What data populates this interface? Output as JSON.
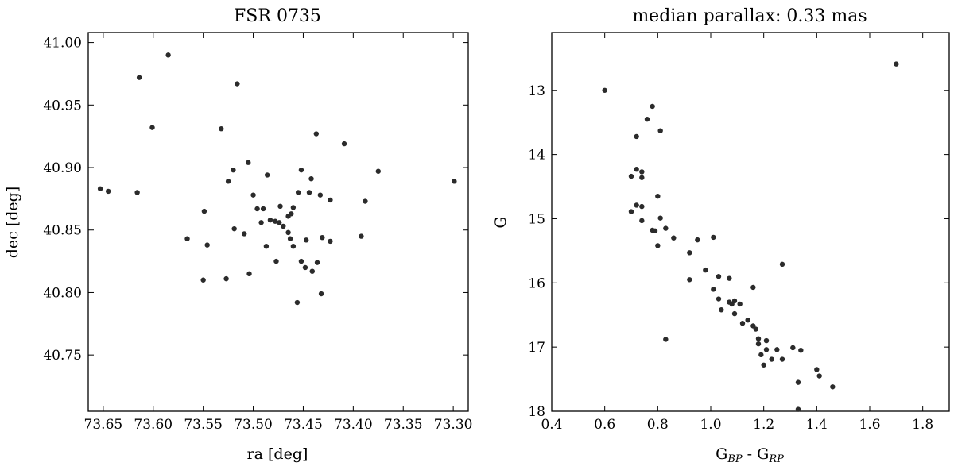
{
  "chart_data": [
    {
      "type": "scatter",
      "title": "FSR 0735",
      "xlabel": "ra [deg]",
      "ylabel": "dec [deg]",
      "xlim": [
        73.665,
        73.285
      ],
      "ylim": [
        40.705,
        41.008
      ],
      "xticks": [
        73.65,
        73.6,
        73.55,
        73.5,
        73.45,
        73.4,
        73.35,
        73.3
      ],
      "xtick_labels": [
        "73.65",
        "73.60",
        "73.55",
        "73.50",
        "73.45",
        "73.40",
        "73.35",
        "73.30"
      ],
      "yticks": [
        40.75,
        40.8,
        40.85,
        40.9,
        40.95,
        41.0
      ],
      "ytick_labels": [
        "40.75",
        "40.80",
        "40.85",
        "40.90",
        "40.95",
        "41.00"
      ],
      "grid": false,
      "color": "#2b2b2b",
      "points": [
        [
          73.653,
          40.883
        ],
        [
          73.645,
          40.881
        ],
        [
          73.616,
          40.88
        ],
        [
          73.614,
          40.972
        ],
        [
          73.585,
          40.99
        ],
        [
          73.601,
          40.932
        ],
        [
          73.566,
          40.843
        ],
        [
          73.549,
          40.865
        ],
        [
          73.546,
          40.838
        ],
        [
          73.55,
          40.81
        ],
        [
          73.532,
          40.931
        ],
        [
          73.527,
          40.811
        ],
        [
          73.516,
          40.967
        ],
        [
          73.52,
          40.898
        ],
        [
          73.525,
          40.889
        ],
        [
          73.519,
          40.851
        ],
        [
          73.509,
          40.847
        ],
        [
          73.505,
          40.904
        ],
        [
          73.5,
          40.878
        ],
        [
          73.504,
          40.815
        ],
        [
          73.496,
          40.867
        ],
        [
          73.492,
          40.856
        ],
        [
          73.49,
          40.867
        ],
        [
          73.487,
          40.837
        ],
        [
          73.486,
          40.894
        ],
        [
          73.483,
          40.858
        ],
        [
          73.478,
          40.857
        ],
        [
          73.477,
          40.825
        ],
        [
          73.474,
          40.856
        ],
        [
          73.473,
          40.869
        ],
        [
          73.47,
          40.853
        ],
        [
          73.465,
          40.861
        ],
        [
          73.465,
          40.848
        ],
        [
          73.463,
          40.843
        ],
        [
          73.462,
          40.863
        ],
        [
          73.46,
          40.837
        ],
        [
          73.46,
          40.868
        ],
        [
          73.456,
          40.792
        ],
        [
          73.455,
          40.88
        ],
        [
          73.452,
          40.825
        ],
        [
          73.452,
          40.898
        ],
        [
          73.448,
          40.82
        ],
        [
          73.447,
          40.842
        ],
        [
          73.444,
          40.88
        ],
        [
          73.442,
          40.891
        ],
        [
          73.441,
          40.817
        ],
        [
          73.436,
          40.824
        ],
        [
          73.437,
          40.927
        ],
        [
          73.433,
          40.878
        ],
        [
          73.431,
          40.844
        ],
        [
          73.432,
          40.799
        ],
        [
          73.423,
          40.874
        ],
        [
          73.423,
          40.841
        ],
        [
          73.409,
          40.919
        ],
        [
          73.392,
          40.845
        ],
        [
          73.388,
          40.873
        ],
        [
          73.375,
          40.897
        ],
        [
          73.299,
          40.889
        ]
      ]
    },
    {
      "type": "scatter",
      "title": "median parallax: 0.33 mas",
      "xlabel_main": "G",
      "xlabel_sub1": "BP",
      "xlabel_sep": " - G",
      "xlabel_sub2": "RP",
      "ylabel": "G",
      "xlim": [
        0.4,
        1.9
      ],
      "ylim": [
        18.0,
        12.1
      ],
      "y_inverted": true,
      "xticks": [
        0.4,
        0.6,
        0.8,
        1.0,
        1.2,
        1.4,
        1.6,
        1.8
      ],
      "xtick_labels": [
        "0.4",
        "0.6",
        "0.8",
        "1.0",
        "1.2",
        "1.4",
        "1.6",
        "1.8"
      ],
      "yticks": [
        13,
        14,
        15,
        16,
        17,
        18
      ],
      "ytick_labels": [
        "13",
        "14",
        "15",
        "16",
        "17",
        "18"
      ],
      "grid": false,
      "color": "#2b2b2b",
      "points": [
        [
          0.6,
          13.0
        ],
        [
          1.7,
          12.59
        ],
        [
          0.78,
          13.25
        ],
        [
          0.81,
          13.63
        ],
        [
          0.76,
          13.45
        ],
        [
          0.72,
          13.72
        ],
        [
          0.72,
          14.23
        ],
        [
          0.74,
          14.27
        ],
        [
          0.74,
          14.36
        ],
        [
          0.7,
          14.34
        ],
        [
          0.72,
          14.79
        ],
        [
          0.74,
          14.81
        ],
        [
          0.7,
          14.89
        ],
        [
          0.8,
          14.65
        ],
        [
          0.81,
          14.99
        ],
        [
          0.74,
          15.03
        ],
        [
          0.78,
          15.18
        ],
        [
          0.79,
          15.19
        ],
        [
          0.83,
          15.15
        ],
        [
          0.86,
          15.3
        ],
        [
          0.8,
          15.42
        ],
        [
          0.92,
          15.53
        ],
        [
          0.95,
          15.33
        ],
        [
          1.01,
          15.29
        ],
        [
          0.98,
          15.8
        ],
        [
          0.92,
          15.95
        ],
        [
          1.03,
          15.9
        ],
        [
          1.07,
          15.93
        ],
        [
          1.01,
          16.1
        ],
        [
          1.03,
          16.25
        ],
        [
          1.07,
          16.3
        ],
        [
          1.09,
          16.28
        ],
        [
          1.08,
          16.33
        ],
        [
          1.11,
          16.33
        ],
        [
          1.04,
          16.42
        ],
        [
          1.09,
          16.48
        ],
        [
          1.16,
          16.07
        ],
        [
          1.27,
          15.71
        ],
        [
          1.12,
          16.63
        ],
        [
          1.14,
          16.58
        ],
        [
          1.16,
          16.67
        ],
        [
          1.17,
          16.72
        ],
        [
          1.18,
          16.87
        ],
        [
          1.18,
          16.95
        ],
        [
          1.21,
          16.9
        ],
        [
          1.21,
          17.04
        ],
        [
          1.19,
          17.12
        ],
        [
          1.23,
          17.19
        ],
        [
          1.25,
          17.04
        ],
        [
          1.27,
          17.19
        ],
        [
          1.2,
          17.28
        ],
        [
          0.83,
          16.88
        ],
        [
          1.31,
          17.01
        ],
        [
          1.34,
          17.05
        ],
        [
          1.4,
          17.35
        ],
        [
          1.41,
          17.45
        ],
        [
          1.33,
          17.55
        ],
        [
          1.46,
          17.62
        ],
        [
          1.33,
          17.97
        ]
      ]
    }
  ]
}
